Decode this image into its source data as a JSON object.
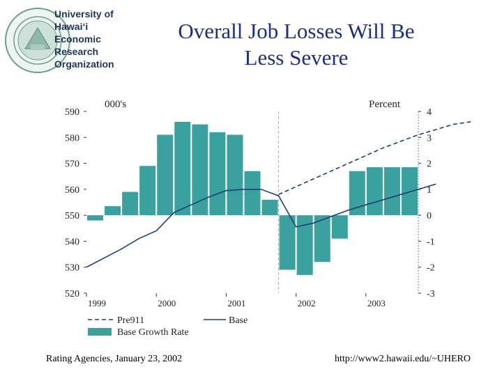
{
  "org": {
    "lines": [
      "University of",
      "Hawai‘i",
      "Economic",
      "Research",
      "Organization"
    ],
    "seal_text": "UNIVERSITY OF HAWAII 1907"
  },
  "title": {
    "line1": "Overall Job Losses Will Be",
    "line2": "Less Severe"
  },
  "footer": {
    "left": "Rating Agencies, January 23, 2002",
    "right": "http://www2.hawaii.edu/~UHERO"
  },
  "colors": {
    "bar": "#3aa19f",
    "line": "#1c3f73",
    "title": "#1a2e8a",
    "divider": "#aaaaaa"
  },
  "chart_data": {
    "type": "bar+line",
    "left_axis_label": "000's",
    "right_axis_label": "Percent",
    "left_ylim": [
      520,
      590
    ],
    "left_ticks": [
      "520",
      "530",
      "540",
      "550",
      "560",
      "570",
      "580",
      "590"
    ],
    "right_ylim": [
      -3,
      4
    ],
    "right_ticks": [
      "-3",
      "-2",
      "-1",
      "0",
      "1",
      "2",
      "3",
      "4"
    ],
    "x_start": 1999,
    "quarters_per_year": 4,
    "year_labels": [
      "1999",
      "2000",
      "2001",
      "2002",
      "2003"
    ],
    "forecast_start": 2001.75,
    "series": [
      {
        "name": "Base Growth Rate",
        "axis": "right",
        "style": "bar",
        "values": [
          -0.2,
          0.35,
          0.9,
          1.9,
          3.1,
          3.6,
          3.5,
          3.2,
          3.1,
          1.7,
          0.6,
          -2.1,
          -2.3,
          -1.8,
          -0.9,
          1.7,
          1.85,
          1.85,
          1.85
        ]
      },
      {
        "name": "Base",
        "axis": "left",
        "style": "solid",
        "values": [
          530,
          533.5,
          537,
          541,
          544,
          551,
          554,
          557,
          559.5,
          560,
          560,
          557.5,
          545.5,
          547,
          549.5,
          552,
          554,
          556,
          558,
          560,
          562
        ]
      },
      {
        "name": "Pre911",
        "axis": "left",
        "style": "dashed",
        "start_index": 11,
        "values": [
          558,
          561,
          564,
          567,
          570,
          573,
          576,
          578.5,
          581,
          583,
          585,
          586
        ]
      }
    ],
    "legend": [
      "Pre911",
      "Base",
      "Base Growth Rate"
    ]
  }
}
